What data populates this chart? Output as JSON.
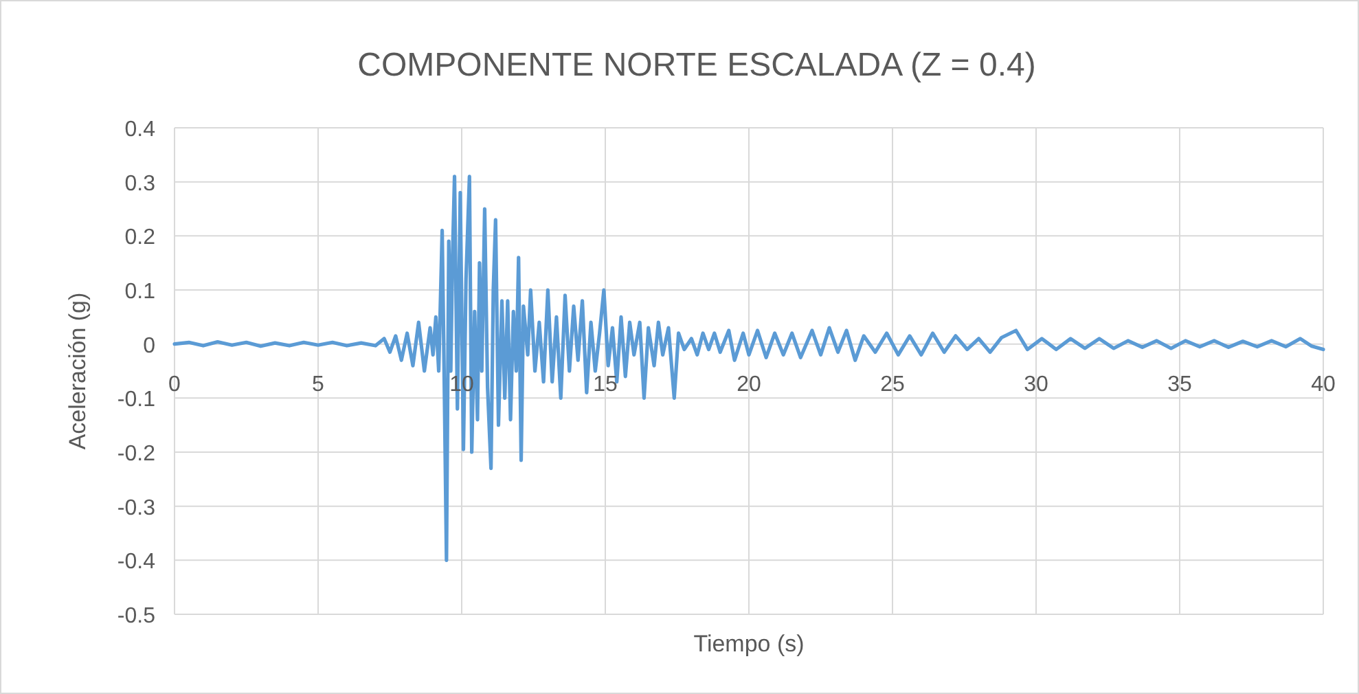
{
  "chart_data": {
    "type": "line",
    "title": "COMPONENTE NORTE ESCALADA (Z = 0.4)",
    "xlabel": "Tiempo (s)",
    "ylabel": "Aceleración (g)",
    "xlim": [
      0,
      40
    ],
    "xticks": [
      0,
      5,
      10,
      15,
      20,
      25,
      30,
      35,
      40
    ],
    "ylim": [
      -0.5,
      0.4
    ],
    "yticks": [
      -0.5,
      -0.4,
      -0.3,
      -0.2,
      -0.1,
      0,
      0.1,
      0.2,
      0.3,
      0.4
    ],
    "grid": true,
    "series": [
      {
        "color": "#5b9bd5",
        "x": [
          0,
          0.5,
          1,
          1.5,
          2,
          2.5,
          3,
          3.5,
          4,
          4.5,
          5,
          5.5,
          6,
          6.5,
          7,
          7.3,
          7.5,
          7.7,
          7.9,
          8.1,
          8.3,
          8.5,
          8.7,
          8.9,
          9.0,
          9.1,
          9.2,
          9.32,
          9.4,
          9.47,
          9.55,
          9.62,
          9.68,
          9.75,
          9.85,
          9.95,
          10.06,
          10.15,
          10.27,
          10.35,
          10.45,
          10.55,
          10.62,
          10.7,
          10.8,
          10.9,
          11.02,
          11.1,
          11.18,
          11.28,
          11.4,
          11.5,
          11.6,
          11.7,
          11.8,
          11.9,
          11.98,
          12.07,
          12.15,
          12.3,
          12.4,
          12.55,
          12.7,
          12.85,
          13.0,
          13.15,
          13.3,
          13.45,
          13.6,
          13.75,
          13.9,
          14.05,
          14.2,
          14.35,
          14.5,
          14.65,
          14.8,
          14.95,
          15.1,
          15.25,
          15.4,
          15.55,
          15.7,
          15.85,
          16.0,
          16.2,
          16.35,
          16.5,
          16.7,
          16.85,
          17.0,
          17.2,
          17.4,
          17.55,
          17.75,
          18.0,
          18.2,
          18.4,
          18.6,
          18.8,
          19.0,
          19.3,
          19.5,
          19.8,
          20.0,
          20.3,
          20.6,
          20.9,
          21.2,
          21.5,
          21.8,
          22.2,
          22.5,
          22.8,
          23.1,
          23.4,
          23.7,
          24.0,
          24.4,
          24.8,
          25.2,
          25.6,
          26.0,
          26.4,
          26.8,
          27.2,
          27.6,
          28.0,
          28.4,
          28.8,
          29.3,
          29.7,
          30.2,
          30.7,
          31.2,
          31.7,
          32.2,
          32.7,
          33.2,
          33.7,
          34.2,
          34.7,
          35.2,
          35.7,
          36.2,
          36.7,
          37.2,
          37.7,
          38.2,
          38.7,
          39.2,
          39.6,
          40
        ],
        "values": [
          0,
          0.003,
          -0.003,
          0.004,
          -0.002,
          0.003,
          -0.004,
          0.002,
          -0.003,
          0.003,
          -0.002,
          0.003,
          -0.003,
          0.002,
          -0.003,
          0.01,
          -0.015,
          0.015,
          -0.03,
          0.02,
          -0.04,
          0.04,
          -0.05,
          0.03,
          -0.02,
          0.05,
          -0.05,
          0.21,
          -0.1,
          -0.4,
          0.19,
          -0.05,
          0.16,
          0.31,
          -0.12,
          0.28,
          -0.195,
          0.12,
          0.31,
          -0.2,
          0.06,
          -0.14,
          0.15,
          -0.05,
          0.25,
          -0.08,
          -0.23,
          0.1,
          0.23,
          -0.15,
          0.08,
          -0.1,
          0.08,
          -0.14,
          0.06,
          -0.05,
          0.16,
          -0.215,
          0.07,
          -0.02,
          0.1,
          -0.05,
          0.04,
          -0.07,
          0.1,
          -0.07,
          0.05,
          -0.1,
          0.09,
          -0.05,
          0.07,
          -0.03,
          0.08,
          -0.09,
          0.04,
          -0.05,
          0.02,
          0.1,
          -0.04,
          0.03,
          -0.07,
          0.05,
          -0.06,
          0.04,
          -0.02,
          0.04,
          -0.1,
          0.03,
          -0.04,
          0.04,
          -0.02,
          0.03,
          -0.1,
          0.02,
          -0.01,
          0.01,
          -0.02,
          0.02,
          -0.01,
          0.02,
          -0.015,
          0.025,
          -0.03,
          0.02,
          -0.02,
          0.025,
          -0.025,
          0.02,
          -0.02,
          0.02,
          -0.025,
          0.025,
          -0.02,
          0.03,
          -0.015,
          0.025,
          -0.03,
          0.015,
          -0.015,
          0.02,
          -0.02,
          0.015,
          -0.02,
          0.02,
          -0.015,
          0.015,
          -0.01,
          0.01,
          -0.015,
          0.012,
          0.025,
          -0.01,
          0.01,
          -0.01,
          0.01,
          -0.008,
          0.01,
          -0.008,
          0.006,
          -0.006,
          0.006,
          -0.008,
          0.006,
          -0.005,
          0.006,
          -0.006,
          0.005,
          -0.005,
          0.006,
          -0.005,
          0.01,
          -0.004,
          -0.01
        ]
      }
    ]
  }
}
